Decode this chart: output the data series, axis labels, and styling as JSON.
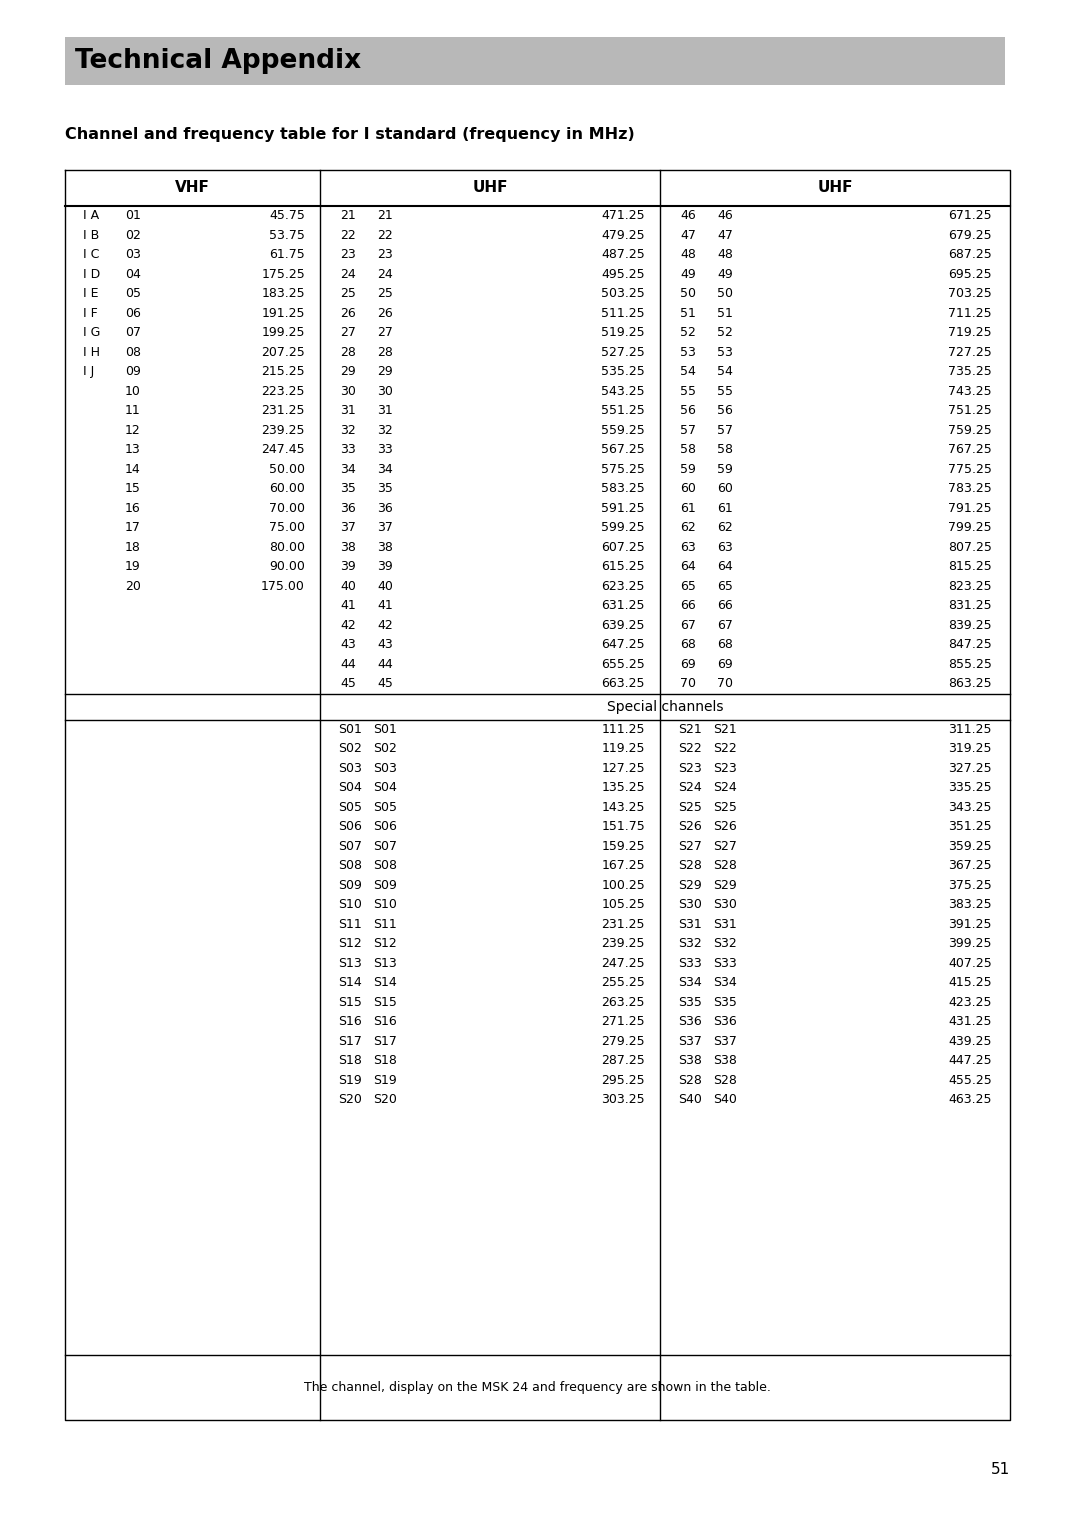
{
  "title_bar_text": "Technical Appendix",
  "subtitle": "Channel and frequency table for I standard (frequency in MHz)",
  "title_bar_color": "#b8b8b8",
  "bg_color": "#ffffff",
  "page_number": "51",
  "vhf_header": "VHF",
  "uhf_header1": "UHF",
  "uhf_header2": "UHF",
  "vhf_rows": [
    [
      "I A",
      "01",
      "45.75"
    ],
    [
      "I B",
      "02",
      "53.75"
    ],
    [
      "I C",
      "03",
      "61.75"
    ],
    [
      "I D",
      "04",
      "175.25"
    ],
    [
      "I E",
      "05",
      "183.25"
    ],
    [
      "I F",
      "06",
      "191.25"
    ],
    [
      "I G",
      "07",
      "199.25"
    ],
    [
      "I H",
      "08",
      "207.25"
    ],
    [
      "I J",
      "09",
      "215.25"
    ],
    [
      "",
      "10",
      "223.25"
    ],
    [
      "",
      "11",
      "231.25"
    ],
    [
      "",
      "12",
      "239.25"
    ],
    [
      "",
      "13",
      "247.45"
    ],
    [
      "",
      "14",
      "50.00"
    ],
    [
      "",
      "15",
      "60.00"
    ],
    [
      "",
      "16",
      "70.00"
    ],
    [
      "",
      "17",
      "75.00"
    ],
    [
      "",
      "18",
      "80.00"
    ],
    [
      "",
      "19",
      "90.00"
    ],
    [
      "",
      "20",
      "175.00"
    ]
  ],
  "uhf1_rows": [
    [
      "21",
      "21",
      "471.25"
    ],
    [
      "22",
      "22",
      "479.25"
    ],
    [
      "23",
      "23",
      "487.25"
    ],
    [
      "24",
      "24",
      "495.25"
    ],
    [
      "25",
      "25",
      "503.25"
    ],
    [
      "26",
      "26",
      "511.25"
    ],
    [
      "27",
      "27",
      "519.25"
    ],
    [
      "28",
      "28",
      "527.25"
    ],
    [
      "29",
      "29",
      "535.25"
    ],
    [
      "30",
      "30",
      "543.25"
    ],
    [
      "31",
      "31",
      "551.25"
    ],
    [
      "32",
      "32",
      "559.25"
    ],
    [
      "33",
      "33",
      "567.25"
    ],
    [
      "34",
      "34",
      "575.25"
    ],
    [
      "35",
      "35",
      "583.25"
    ],
    [
      "36",
      "36",
      "591.25"
    ],
    [
      "37",
      "37",
      "599.25"
    ],
    [
      "38",
      "38",
      "607.25"
    ],
    [
      "39",
      "39",
      "615.25"
    ],
    [
      "40",
      "40",
      "623.25"
    ],
    [
      "41",
      "41",
      "631.25"
    ],
    [
      "42",
      "42",
      "639.25"
    ],
    [
      "43",
      "43",
      "647.25"
    ],
    [
      "44",
      "44",
      "655.25"
    ],
    [
      "45",
      "45",
      "663.25"
    ]
  ],
  "uhf2_rows": [
    [
      "46",
      "46",
      "671.25"
    ],
    [
      "47",
      "47",
      "679.25"
    ],
    [
      "48",
      "48",
      "687.25"
    ],
    [
      "49",
      "49",
      "695.25"
    ],
    [
      "50",
      "50",
      "703.25"
    ],
    [
      "51",
      "51",
      "711.25"
    ],
    [
      "52",
      "52",
      "719.25"
    ],
    [
      "53",
      "53",
      "727.25"
    ],
    [
      "54",
      "54",
      "735.25"
    ],
    [
      "55",
      "55",
      "743.25"
    ],
    [
      "56",
      "56",
      "751.25"
    ],
    [
      "57",
      "57",
      "759.25"
    ],
    [
      "58",
      "58",
      "767.25"
    ],
    [
      "59",
      "59",
      "775.25"
    ],
    [
      "60",
      "60",
      "783.25"
    ],
    [
      "61",
      "61",
      "791.25"
    ],
    [
      "62",
      "62",
      "799.25"
    ],
    [
      "63",
      "63",
      "807.25"
    ],
    [
      "64",
      "64",
      "815.25"
    ],
    [
      "65",
      "65",
      "823.25"
    ],
    [
      "66",
      "66",
      "831.25"
    ],
    [
      "67",
      "67",
      "839.25"
    ],
    [
      "68",
      "68",
      "847.25"
    ],
    [
      "69",
      "69",
      "855.25"
    ],
    [
      "70",
      "70",
      "863.25"
    ]
  ],
  "special_header": "Special channels",
  "special_left_rows": [
    [
      "S01",
      "S01",
      "111.25"
    ],
    [
      "S02",
      "S02",
      "119.25"
    ],
    [
      "S03",
      "S03",
      "127.25"
    ],
    [
      "S04",
      "S04",
      "135.25"
    ],
    [
      "S05",
      "S05",
      "143.25"
    ],
    [
      "S06",
      "S06",
      "151.75"
    ],
    [
      "S07",
      "S07",
      "159.25"
    ],
    [
      "S08",
      "S08",
      "167.25"
    ],
    [
      "S09",
      "S09",
      "100.25"
    ],
    [
      "S10",
      "S10",
      "105.25"
    ],
    [
      "S11",
      "S11",
      "231.25"
    ],
    [
      "S12",
      "S12",
      "239.25"
    ],
    [
      "S13",
      "S13",
      "247.25"
    ],
    [
      "S14",
      "S14",
      "255.25"
    ],
    [
      "S15",
      "S15",
      "263.25"
    ],
    [
      "S16",
      "S16",
      "271.25"
    ],
    [
      "S17",
      "S17",
      "279.25"
    ],
    [
      "S18",
      "S18",
      "287.25"
    ],
    [
      "S19",
      "S19",
      "295.25"
    ],
    [
      "S20",
      "S20",
      "303.25"
    ]
  ],
  "special_right_rows": [
    [
      "S21",
      "S21",
      "311.25"
    ],
    [
      "S22",
      "S22",
      "319.25"
    ],
    [
      "S23",
      "S23",
      "327.25"
    ],
    [
      "S24",
      "S24",
      "335.25"
    ],
    [
      "S25",
      "S25",
      "343.25"
    ],
    [
      "S26",
      "S26",
      "351.25"
    ],
    [
      "S27",
      "S27",
      "359.25"
    ],
    [
      "S28",
      "S28",
      "367.25"
    ],
    [
      "S29",
      "S29",
      "375.25"
    ],
    [
      "S30",
      "S30",
      "383.25"
    ],
    [
      "S31",
      "S31",
      "391.25"
    ],
    [
      "S32",
      "S32",
      "399.25"
    ],
    [
      "S33",
      "S33",
      "407.25"
    ],
    [
      "S34",
      "S34",
      "415.25"
    ],
    [
      "S35",
      "S35",
      "423.25"
    ],
    [
      "S36",
      "S36",
      "431.25"
    ],
    [
      "S37",
      "S37",
      "439.25"
    ],
    [
      "S38",
      "S38",
      "447.25"
    ],
    [
      "S28",
      "S28",
      "455.25"
    ],
    [
      "S40",
      "S40",
      "463.25"
    ]
  ],
  "footer_note": "The channel, display on the MSK 24 and frequency are shown in the table."
}
